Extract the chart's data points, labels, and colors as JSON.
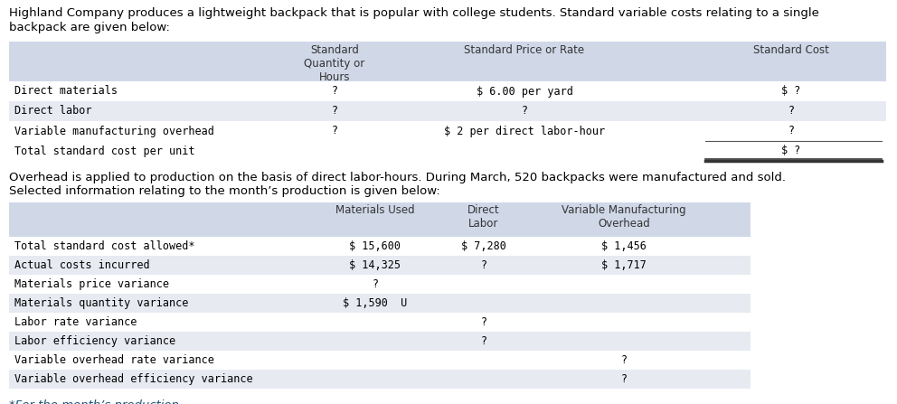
{
  "intro_text1": "Highland Company produces a lightweight backpack that is popular with college students. Standard variable costs relating to a single",
  "intro_text2": "backpack are given below:",
  "mid_text1": "Overhead is applied to production on the basis of direct labor-hours. During March, 520 backpacks were manufactured and sold.",
  "mid_text2": "Selected information relating to the month’s production is given below:",
  "footer_text": "*For the month’s production.",
  "header_bg": "#d0d8e8",
  "row_bg_alt": "#e8eaf2",
  "row_bg_white": "#ffffff",
  "t1_col_headers": [
    "Standard\nQuantity or\nHours",
    "Standard Price or Rate",
    "Standard Cost"
  ],
  "t1_rows": [
    [
      "Direct materials",
      "?",
      "$ 6.00 per yard",
      "$ ?"
    ],
    [
      "Direct labor",
      "?",
      "?",
      "?"
    ],
    [
      "Variable manufacturing overhead",
      "?",
      "$ 2 per direct labor-hour",
      "?"
    ],
    [
      "Total standard cost per unit",
      "",
      "",
      "$ ?"
    ]
  ],
  "t1_row_styles": [
    "white",
    "alt",
    "white",
    "white"
  ],
  "t2_col_headers": [
    "Materials Used",
    "Direct\nLabor",
    "Variable Manufacturing\nOverhead"
  ],
  "t2_rows": [
    [
      "Total standard cost allowed*",
      "$ 15,600",
      "$ 7,280",
      "$ 1,456"
    ],
    [
      "Actual costs incurred",
      "$ 14,325",
      "?",
      "$ 1,717"
    ],
    [
      "Materials price variance",
      "?",
      "",
      ""
    ],
    [
      "Materials quantity variance",
      "$ 1,590  U",
      "",
      ""
    ],
    [
      "Labor rate variance",
      "",
      "?",
      ""
    ],
    [
      "Labor efficiency variance",
      "",
      "?",
      ""
    ],
    [
      "Variable overhead rate variance",
      "",
      "",
      "?"
    ],
    [
      "Variable overhead efficiency variance",
      "",
      "",
      "?"
    ]
  ],
  "t2_row_styles": [
    "white",
    "alt",
    "white",
    "alt",
    "white",
    "alt",
    "white",
    "alt"
  ],
  "blue_text": "#1a5276",
  "fs_body": 8.5,
  "fs_intro": 9.5
}
